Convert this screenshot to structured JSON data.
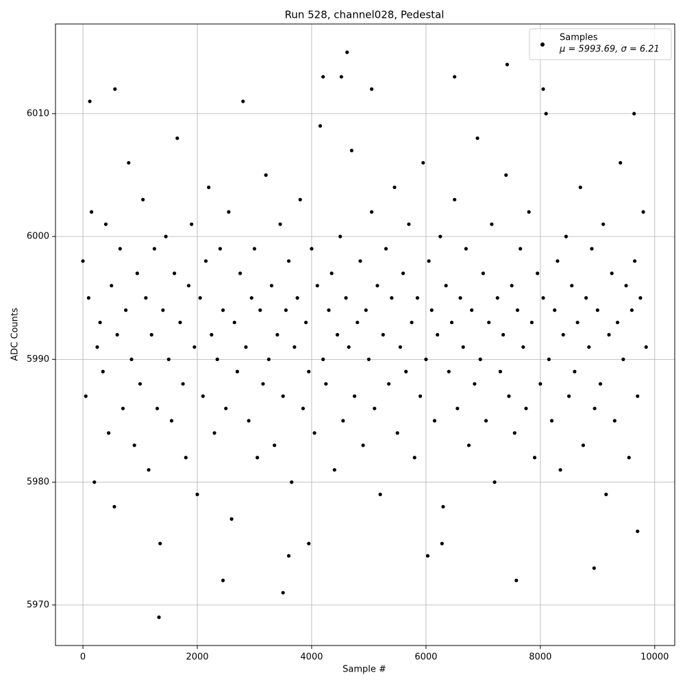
{
  "chart_data": {
    "type": "scatter",
    "title": "Run 528, channel028, Pedestal",
    "x_label": "Sample #",
    "y_label": "ADC Counts",
    "xlim": [
      -480,
      10350
    ],
    "ylim": [
      5966.7,
      6017.3
    ],
    "xticks": [
      0,
      2000,
      4000,
      6000,
      8000,
      10000
    ],
    "yticks": [
      5970,
      5980,
      5990,
      6000,
      6010
    ],
    "grid": true,
    "legend": "upper right",
    "legend_note": "μ = 5993.69, σ = 6.21",
    "series": [
      {
        "name": "Samples",
        "color": "#000000",
        "x": [
          0,
          50,
          100,
          150,
          200,
          250,
          300,
          350,
          400,
          450,
          500,
          550,
          600,
          650,
          700,
          750,
          800,
          850,
          900,
          950,
          1000,
          1050,
          1100,
          1150,
          1200,
          1250,
          1300,
          1350,
          1400,
          1450,
          1500,
          1550,
          1600,
          1650,
          1700,
          1750,
          1800,
          1850,
          1900,
          1950,
          2000,
          2050,
          2100,
          2150,
          2200,
          2250,
          2300,
          2350,
          2400,
          2450,
          2500,
          2550,
          2600,
          2650,
          2700,
          2750,
          2800,
          2850,
          2900,
          2950,
          3000,
          3050,
          3100,
          3150,
          3200,
          3250,
          3300,
          3350,
          3400,
          3450,
          3500,
          3550,
          3600,
          3650,
          3700,
          3750,
          3800,
          3850,
          3900,
          3950,
          4000,
          4050,
          4100,
          4150,
          4200,
          4250,
          4300,
          4350,
          4400,
          4450,
          4500,
          4550,
          4600,
          4650,
          4700,
          4750,
          4800,
          4850,
          4900,
          4950,
          5000,
          5050,
          5100,
          5150,
          5200,
          5250,
          5300,
          5350,
          5400,
          5450,
          5500,
          5550,
          5600,
          5650,
          5700,
          5750,
          5800,
          5850,
          5900,
          5950,
          6000,
          6050,
          6100,
          6150,
          6200,
          6250,
          6300,
          6350,
          6400,
          6450,
          6500,
          6550,
          6600,
          6650,
          6700,
          6750,
          6800,
          6850,
          6900,
          6950,
          7000,
          7050,
          7100,
          7150,
          7200,
          7250,
          7300,
          7350,
          7400,
          7450,
          7500,
          7550,
          7600,
          7650,
          7700,
          7750,
          7800,
          7850,
          7900,
          7950,
          8000,
          8050,
          8100,
          8150,
          8200,
          8250,
          8300,
          8350,
          8400,
          8450,
          8500,
          8550,
          8600,
          8650,
          8700,
          8750,
          8800,
          8850,
          8900,
          8950,
          9000,
          9050,
          9100,
          9150,
          9200,
          9250,
          9300,
          9350,
          9400,
          9450,
          9500,
          9550,
          9600,
          9650,
          9700,
          9750,
          9800,
          9850,
          1330,
          2450,
          3500,
          3600,
          4620,
          7420,
          7580,
          8940,
          6030,
          4200,
          4520,
          6500,
          120,
          8050,
          5050,
          560,
          3950,
          6280,
          9700,
          9640
        ],
        "values": [
          5998,
          5987,
          5995,
          6002,
          5980,
          5991,
          5993,
          5989,
          6001,
          5984,
          5996,
          5978,
          5992,
          5999,
          5986,
          5994,
          6006,
          5990,
          5983,
          5997,
          5988,
          6003,
          5995,
          5981,
          5992,
          5999,
          5986,
          5975,
          5994,
          6000,
          5990,
          5985,
          5997,
          6008,
          5993,
          5988,
          5982,
          5996,
          6001,
          5991,
          5979,
          5995,
          5987,
          5998,
          6004,
          5992,
          5984,
          5990,
          5999,
          5994,
          5986,
          6002,
          5977,
          5993,
          5989,
          5997,
          6011,
          5991,
          5985,
          5995,
          5999,
          5982,
          5994,
          5988,
          6005,
          5990,
          5996,
          5983,
          5992,
          6001,
          5987,
          5994,
          5998,
          5980,
          5991,
          5995,
          6003,
          5986,
          5993,
          5989,
          5999,
          5984,
          5996,
          6009,
          5990,
          5988,
          5994,
          5997,
          5981,
          5992,
          6000,
          5985,
          5995,
          5991,
          6007,
          5987,
          5993,
          5998,
          5983,
          5994,
          5990,
          6002,
          5986,
          5996,
          5979,
          5992,
          5999,
          5988,
          5995,
          6004,
          5984,
          5991,
          5997,
          5989,
          6001,
          5993,
          5982,
          5995,
          5987,
          6006,
          5990,
          5998,
          5994,
          5985,
          5992,
          6000,
          5978,
          5996,
          5989,
          5993,
          6003,
          5986,
          5995,
          5991,
          5999,
          5983,
          5994,
          5988,
          6008,
          5990,
          5997,
          5985,
          5993,
          6001,
          5980,
          5995,
          5989,
          5992,
          6005,
          5987,
          5996,
          5984,
          5994,
          5999,
          5991,
          5986,
          6002,
          5993,
          5982,
          5997,
          5988,
          5995,
          6010,
          5990,
          5985,
          5994,
          5998,
          5981,
          5992,
          6000,
          5987,
          5996,
          5989,
          5993,
          6004,
          5983,
          5995,
          5991,
          5999,
          5986,
          5994,
          5988,
          6001,
          5979,
          5992,
          5997,
          5985,
          5993,
          6006,
          5990,
          5996,
          5982,
          5994,
          5998,
          5987,
          5995,
          6002,
          5991,
          5969,
          5972,
          5971,
          5974,
          6015,
          6014,
          5972,
          5973,
          5974,
          6013,
          6013,
          6013,
          6011,
          6012,
          6012,
          6012,
          5975,
          5975,
          5976,
          6010
        ]
      }
    ]
  }
}
